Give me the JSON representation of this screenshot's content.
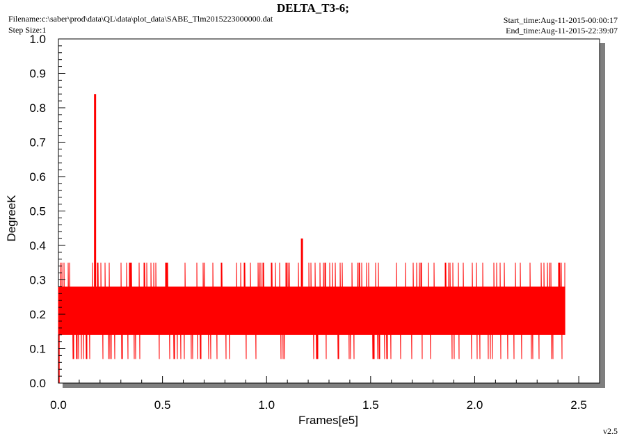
{
  "header": {
    "title": "DELTA_T3-6;",
    "filename": "Filename:c:\\saber\\prod\\data\\QL\\data\\plot_data\\SABE_Tlm2015223000000.dat",
    "step_size": "Step Size:1",
    "start_time": "Start_time:Aug-11-2015-00:00:17",
    "end_time": "End_time:Aug-11-2015-22:39:07"
  },
  "footer": {
    "version": "v2.5"
  },
  "colors": {
    "series": "#ff0000",
    "frame_shadow": "#7f7f7f"
  },
  "chart_data": {
    "type": "line",
    "title": "DELTA_T3-6;",
    "xlabel": "Frames[e5]",
    "ylabel": "DegreeK",
    "xlim": [
      0.0,
      2.6
    ],
    "ylim": [
      0.0,
      1.0
    ],
    "x_ticks": [
      "0.0",
      "0.5",
      "1.0",
      "1.5",
      "2.0",
      "2.5"
    ],
    "y_ticks": [
      "0.0",
      "0.1",
      "0.2",
      "0.3",
      "0.4",
      "0.5",
      "0.6",
      "0.7",
      "0.8",
      "0.9",
      "1.0"
    ],
    "grid": false,
    "legend": "none",
    "series": [
      {
        "x_range": [
          0.0,
          2.435
        ],
        "band_low": 0.14,
        "band_high": 0.28,
        "typical_values": [
          0.07,
          0.14,
          0.21,
          0.28,
          0.35
        ],
        "spikes": [
          {
            "x": 0.176,
            "y": 0.84
          },
          {
            "x": 1.17,
            "y": 0.42
          }
        ]
      }
    ]
  }
}
